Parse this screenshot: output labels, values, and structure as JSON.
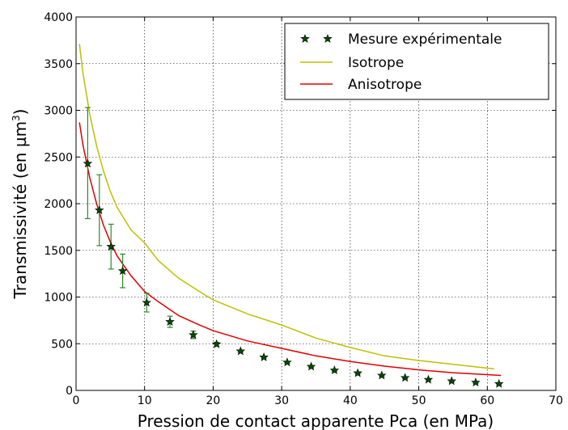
{
  "chart_data": {
    "type": "scatter",
    "title": "",
    "xlabel": "Pression de contact apparente Pca (en MPa)",
    "ylabel_prefix": "Transmissivité (en µm",
    "ylabel_sup": "3",
    "ylabel_suffix": ")",
    "xlim": [
      0,
      70
    ],
    "ylim": [
      0,
      4000
    ],
    "xticks": [
      0,
      10,
      20,
      30,
      40,
      50,
      60,
      70
    ],
    "yticks": [
      0,
      500,
      1000,
      1500,
      2000,
      2500,
      3000,
      3500,
      4000
    ],
    "grid": true,
    "legend_position": "top-right",
    "series": [
      {
        "name": "Mesure expérimentale",
        "kind": "scatter-errorbar",
        "marker": "star",
        "color": "#004d00",
        "error_color": "#2a8a2a",
        "x": [
          1.7,
          3.4,
          5.1,
          6.8,
          10.3,
          13.7,
          17.1,
          20.5,
          24.0,
          27.4,
          30.8,
          34.3,
          37.7,
          41.1,
          44.6,
          48.0,
          51.4,
          54.8,
          58.3,
          61.7
        ],
        "y": [
          2430,
          1930,
          1540,
          1280,
          940,
          735,
          595,
          495,
          420,
          355,
          300,
          255,
          215,
          185,
          160,
          135,
          115,
          100,
          85,
          70
        ],
        "yerr_low": [
          590,
          380,
          240,
          180,
          100,
          60,
          40,
          20,
          10,
          10,
          10,
          10,
          10,
          10,
          10,
          10,
          10,
          10,
          10,
          10
        ],
        "yerr_high": [
          600,
          380,
          240,
          180,
          100,
          60,
          40,
          20,
          10,
          10,
          10,
          10,
          10,
          10,
          10,
          10,
          10,
          10,
          10,
          10
        ]
      },
      {
        "name": "Isotrope",
        "kind": "line",
        "color": "#bfbf00",
        "x": [
          0.5,
          1,
          2,
          3,
          4,
          5,
          6,
          8,
          10,
          12,
          15,
          18,
          20,
          25,
          30,
          35,
          40,
          45,
          50,
          55,
          61
        ],
        "y": [
          3710,
          3400,
          2960,
          2620,
          2350,
          2130,
          1960,
          1720,
          1580,
          1390,
          1200,
          1060,
          970,
          820,
          700,
          560,
          460,
          370,
          320,
          280,
          230
        ]
      },
      {
        "name": "Anisotrope",
        "kind": "line",
        "color": "#e00000",
        "x": [
          0.5,
          1,
          2,
          3,
          4,
          5,
          6,
          8,
          10,
          12,
          15,
          18,
          20,
          25,
          30,
          35,
          40,
          45,
          50,
          55,
          62
        ],
        "y": [
          2870,
          2630,
          2280,
          2000,
          1770,
          1590,
          1440,
          1230,
          1060,
          950,
          800,
          700,
          640,
          530,
          450,
          370,
          310,
          260,
          220,
          190,
          160
        ]
      }
    ]
  }
}
